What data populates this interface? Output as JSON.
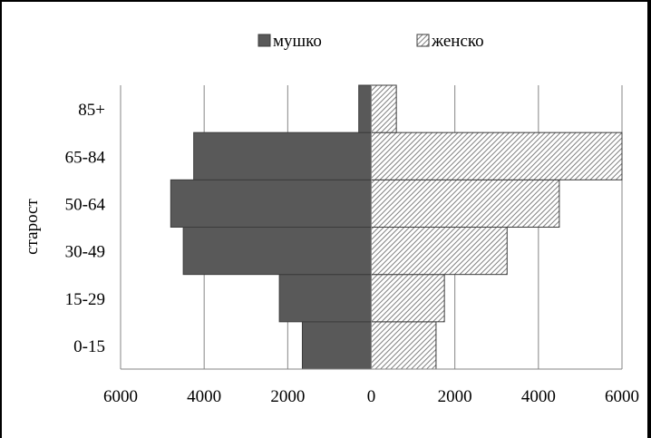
{
  "colors": {
    "male": "#595959",
    "female_pattern_bg": "#ffffff",
    "female_pattern_fg": "#7f7f7f",
    "gridline": "#868686",
    "axis": "#868686",
    "bar_edge": "#3c3c3c"
  },
  "chart_data": {
    "type": "bar",
    "orientation": "horizontal",
    "layout": "population-pyramid",
    "title": "",
    "xlabel": "",
    "ylabel": "старост",
    "categories": [
      "0-15",
      "15-29",
      "30-49",
      "50-64",
      "65-84",
      "85+"
    ],
    "series": [
      {
        "name": "мушко",
        "side": "left",
        "values": [
          1650,
          2200,
          4500,
          4800,
          4250,
          300
        ]
      },
      {
        "name": "женско",
        "side": "right",
        "values": [
          1550,
          1750,
          3250,
          4500,
          6000,
          600
        ]
      }
    ],
    "xlim": [
      -6000,
      6000
    ],
    "xticks": [
      -6000,
      -4000,
      -2000,
      0,
      2000,
      4000,
      6000
    ],
    "xtick_labels": [
      "6000",
      "4000",
      "2000",
      "0",
      "2000",
      "4000",
      "6000"
    ],
    "grid": "vertical",
    "legend_position": "top"
  }
}
